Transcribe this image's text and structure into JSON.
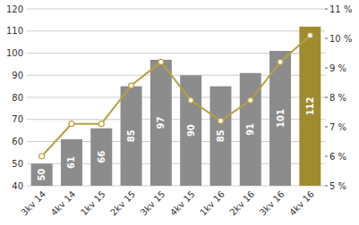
{
  "chart_data": {
    "type": "bar",
    "categories": [
      "3kv 14",
      "4kv 14",
      "1kv 15",
      "2kv 15",
      "3kv 15",
      "4kv 15",
      "1kv 16",
      "2kv 16",
      "3kv 16",
      "4kv 16"
    ],
    "series": [
      {
        "type": "bar",
        "values": [
          50,
          61,
          66,
          85,
          97,
          90,
          85,
          91,
          101,
          112
        ],
        "colors": [
          "#8c8c8c",
          "#8c8c8c",
          "#8c8c8c",
          "#8c8c8c",
          "#8c8c8c",
          "#8c8c8c",
          "#8c8c8c",
          "#8c8c8c",
          "#8c8c8c",
          "#a08c30"
        ],
        "data_labels": true
      },
      {
        "type": "line",
        "axis": "y2",
        "color": "#b8a040",
        "marker": "circle",
        "values": [
          6.0,
          7.1,
          7.1,
          8.4,
          9.2,
          7.9,
          7.2,
          7.9,
          9.2,
          10.1
        ]
      }
    ],
    "ylim": [
      40,
      120
    ],
    "yticks": [
      40,
      50,
      60,
      70,
      80,
      90,
      100,
      110,
      120
    ],
    "y2lim": [
      5,
      11
    ],
    "y2ticks": [
      {
        "value": 5,
        "label": "5 %"
      },
      {
        "value": 6,
        "label": "6 %"
      },
      {
        "value": 7,
        "label": "7 %"
      },
      {
        "value": 8,
        "label": "8 %"
      },
      {
        "value": 9,
        "label": "9 %"
      },
      {
        "value": 10,
        "label": "10 %"
      },
      {
        "value": 11,
        "label": "11 %"
      }
    ],
    "grid": true
  }
}
